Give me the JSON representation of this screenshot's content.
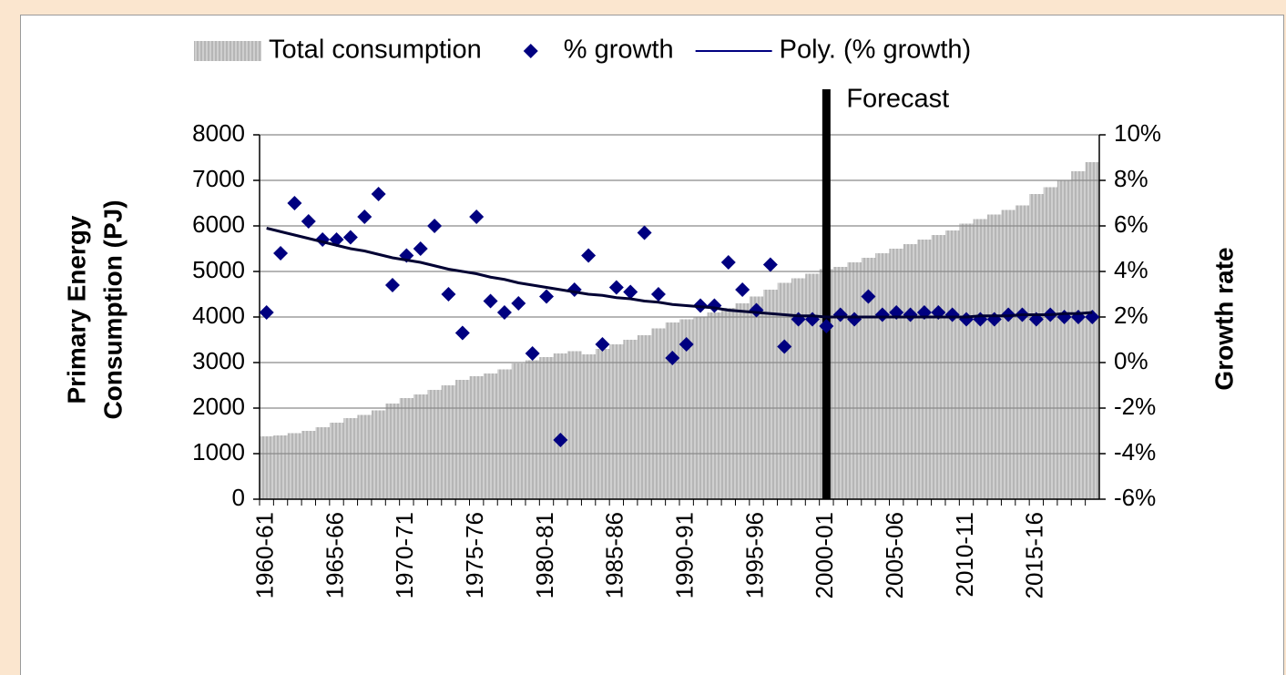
{
  "chart_data": {
    "type": "combo",
    "categories": [
      "1960-61",
      null,
      null,
      null,
      null,
      "1965-66",
      null,
      null,
      null,
      null,
      "1970-71",
      null,
      null,
      null,
      null,
      "1975-76",
      null,
      null,
      null,
      null,
      "1980-81",
      null,
      null,
      null,
      null,
      "1985-86",
      null,
      null,
      null,
      null,
      "1990-91",
      null,
      null,
      null,
      null,
      "1995-96",
      null,
      null,
      null,
      null,
      "2000-01",
      null,
      null,
      null,
      null,
      "2005-06",
      null,
      null,
      null,
      null,
      "2010-11",
      null,
      null,
      null,
      null,
      "2015-16",
      null,
      null,
      null,
      null
    ],
    "series": [
      {
        "name": "Total consumption",
        "type": "area",
        "color": "#c4c4c4",
        "values": [
          1380,
          1400,
          1450,
          1500,
          1580,
          1680,
          1780,
          1850,
          1950,
          2100,
          2220,
          2300,
          2400,
          2500,
          2620,
          2700,
          2760,
          2850,
          2980,
          3050,
          3120,
          3200,
          3250,
          3180,
          3300,
          3400,
          3500,
          3600,
          3750,
          3880,
          3950,
          4000,
          4100,
          4200,
          4300,
          4450,
          4600,
          4750,
          4850,
          4950,
          5050,
          5100,
          5200,
          5300,
          5400,
          5500,
          5600,
          5700,
          5800,
          5900,
          6050,
          6150,
          6250,
          6350,
          6450,
          6700,
          6850,
          7000,
          7200,
          7400
        ]
      },
      {
        "name": "% growth",
        "type": "scatter",
        "axis": "y2",
        "color": "#000080",
        "values": [
          2.2,
          4.8,
          7.0,
          6.2,
          5.4,
          5.4,
          5.5,
          6.4,
          7.4,
          3.4,
          4.7,
          5.0,
          6.0,
          3.0,
          1.3,
          6.4,
          2.7,
          2.2,
          2.6,
          0.4,
          2.9,
          -3.4,
          3.2,
          4.7,
          0.8,
          3.3,
          3.1,
          5.7,
          3.0,
          0.2,
          0.8,
          2.5,
          2.5,
          4.4,
          3.2,
          2.3,
          4.3,
          0.7,
          1.9,
          1.9,
          1.6,
          2.1,
          1.9,
          2.9,
          2.1,
          2.2,
          2.1,
          2.2,
          2.2,
          2.1,
          1.9,
          1.9,
          1.9,
          2.1,
          2.1,
          1.9,
          2.1,
          2.0,
          2.0,
          2.0
        ]
      },
      {
        "name": "Poly. (% growth)",
        "type": "line",
        "axis": "y2",
        "color": "#000033",
        "values": [
          5.9,
          5.75,
          5.6,
          5.45,
          5.3,
          5.15,
          5.0,
          4.9,
          4.75,
          4.6,
          4.5,
          4.4,
          4.25,
          4.1,
          4.0,
          3.9,
          3.75,
          3.65,
          3.5,
          3.4,
          3.3,
          3.2,
          3.1,
          3.0,
          2.95,
          2.85,
          2.8,
          2.7,
          2.65,
          2.55,
          2.5,
          2.45,
          2.4,
          2.3,
          2.25,
          2.2,
          2.15,
          2.1,
          2.05,
          2.05,
          2.0,
          2.0,
          2.0,
          2.0,
          2.0,
          2.0,
          2.0,
          2.0,
          2.0,
          2.0,
          2.0,
          2.05,
          2.05,
          2.05,
          2.1,
          2.1,
          2.1,
          2.15,
          2.15,
          2.2
        ]
      }
    ],
    "ylabel": [
      "Primary Energy",
      "Consumption (PJ)"
    ],
    "y2label": "Growth rate",
    "ylim": [
      0,
      8000
    ],
    "yticks": [
      0,
      1000,
      2000,
      3000,
      4000,
      5000,
      6000,
      7000,
      8000
    ],
    "y2lim": [
      -6,
      10
    ],
    "y2ticks": [
      {
        "value": -6,
        "label": "-6%"
      },
      {
        "value": -4,
        "label": "-4%"
      },
      {
        "value": -2,
        "label": "-2%"
      },
      {
        "value": 0,
        "label": "0%"
      },
      {
        "value": 2,
        "label": "2%"
      },
      {
        "value": 4,
        "label": "4%"
      },
      {
        "value": 6,
        "label": "6%"
      },
      {
        "value": 8,
        "label": "8%"
      },
      {
        "value": 10,
        "label": "10%"
      }
    ],
    "grid": true,
    "legend": "top",
    "annotations": [
      {
        "text": "Forecast",
        "x": "2000-01"
      }
    ]
  }
}
